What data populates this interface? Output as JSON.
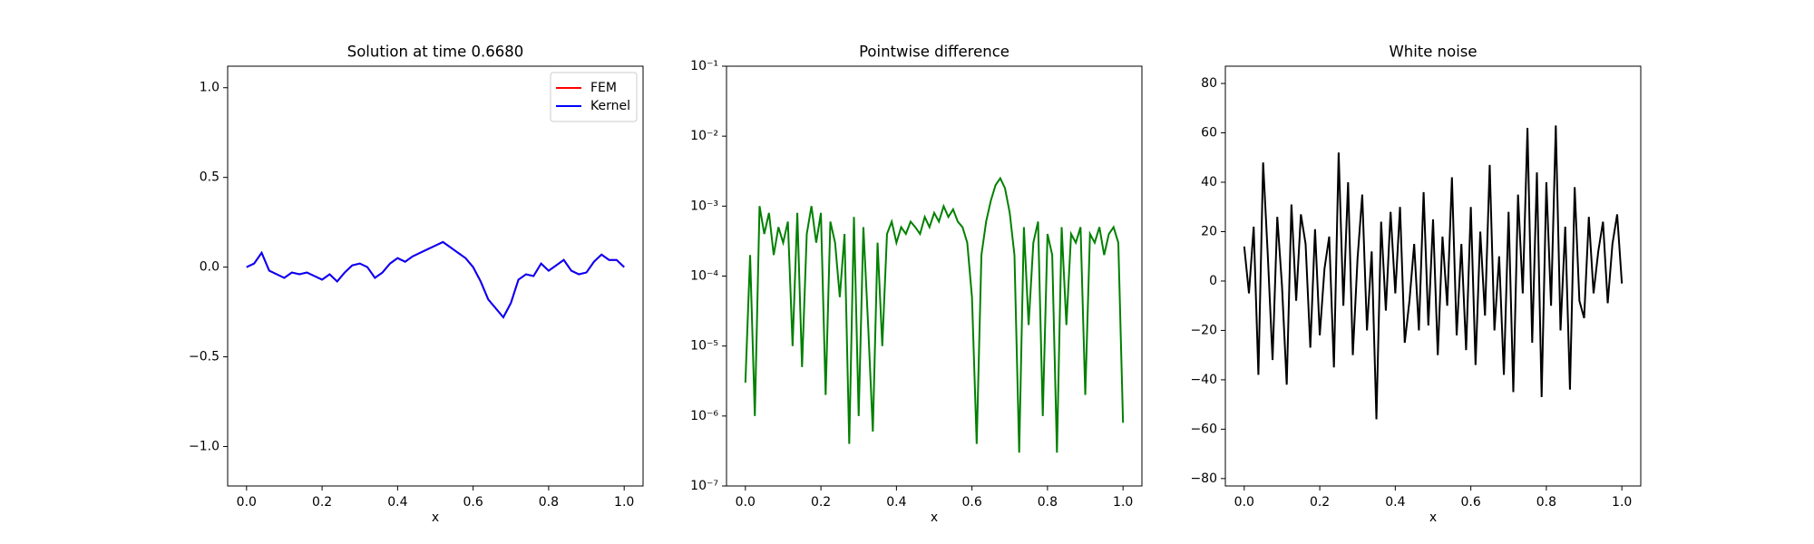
{
  "chart_data": [
    {
      "type": "line",
      "title": "Solution at time 0.6680",
      "xlabel": "x",
      "legend": "upper right",
      "x": [
        0,
        0.02,
        0.04,
        0.06,
        0.08,
        0.1,
        0.12,
        0.14,
        0.16,
        0.18,
        0.2,
        0.22,
        0.24,
        0.26,
        0.28,
        0.3,
        0.32,
        0.34,
        0.36,
        0.38,
        0.4,
        0.42,
        0.44,
        0.46,
        0.48,
        0.5,
        0.52,
        0.54,
        0.56,
        0.58,
        0.6,
        0.62,
        0.64,
        0.66,
        0.68,
        0.7,
        0.72,
        0.74,
        0.76,
        0.78,
        0.8,
        0.82,
        0.84,
        0.86,
        0.88,
        0.9,
        0.92,
        0.94,
        0.96,
        0.98,
        1
      ],
      "series": [
        {
          "name": "FEM",
          "color": "#ff0000",
          "values": [
            0,
            0.02,
            0.08,
            -0.02,
            -0.04,
            -0.06,
            -0.03,
            -0.04,
            -0.03,
            -0.05,
            -0.07,
            -0.04,
            -0.08,
            -0.03,
            0.01,
            0.02,
            0,
            -0.06,
            -0.03,
            0.02,
            0.05,
            0.03,
            0.06,
            0.08,
            0.1,
            0.12,
            0.14,
            0.11,
            0.08,
            0.05,
            0,
            -0.08,
            -0.18,
            -0.23,
            -0.28,
            -0.2,
            -0.07,
            -0.04,
            -0.05,
            0.02,
            -0.02,
            0.01,
            0.04,
            -0.02,
            -0.04,
            -0.03,
            0.03,
            0.07,
            0.04,
            0.04,
            0
          ]
        },
        {
          "name": "Kernel",
          "color": "#0000ff",
          "values": [
            0,
            0.02,
            0.08,
            -0.02,
            -0.04,
            -0.06,
            -0.03,
            -0.04,
            -0.03,
            -0.05,
            -0.07,
            -0.04,
            -0.08,
            -0.03,
            0.01,
            0.02,
            0,
            -0.06,
            -0.03,
            0.02,
            0.05,
            0.03,
            0.06,
            0.08,
            0.1,
            0.12,
            0.14,
            0.11,
            0.08,
            0.05,
            0,
            -0.08,
            -0.18,
            -0.23,
            -0.28,
            -0.2,
            -0.07,
            -0.04,
            -0.05,
            0.02,
            -0.02,
            0.01,
            0.04,
            -0.02,
            -0.04,
            -0.03,
            0.03,
            0.07,
            0.04,
            0.04,
            0
          ]
        }
      ],
      "xlim": [
        -0.05,
        1.05
      ],
      "ylim": [
        -1.22,
        1.12
      ],
      "xticks": [
        {
          "value": 0,
          "label": "0.0"
        },
        {
          "value": 0.2,
          "label": "0.2"
        },
        {
          "value": 0.4,
          "label": "0.4"
        },
        {
          "value": 0.6,
          "label": "0.6"
        },
        {
          "value": 0.8,
          "label": "0.8"
        },
        {
          "value": 1,
          "label": "1.0"
        }
      ],
      "yticks": [
        {
          "value": -1,
          "label": "−1.0"
        },
        {
          "value": -0.5,
          "label": "−0.5"
        },
        {
          "value": 0,
          "label": "0.0"
        },
        {
          "value": 0.5,
          "label": "0.5"
        },
        {
          "value": 1,
          "label": "1.0"
        }
      ]
    },
    {
      "type": "line",
      "title": "Pointwise difference",
      "xlabel": "x",
      "log": true,
      "x": [
        0,
        0.0125,
        0.025,
        0.0375,
        0.05,
        0.0625,
        0.075,
        0.0875,
        0.1,
        0.1125,
        0.125,
        0.1375,
        0.15,
        0.1625,
        0.175,
        0.1875,
        0.2,
        0.2125,
        0.225,
        0.2375,
        0.25,
        0.2625,
        0.275,
        0.2875,
        0.3,
        0.3125,
        0.325,
        0.3375,
        0.35,
        0.3625,
        0.375,
        0.3875,
        0.4,
        0.4125,
        0.425,
        0.4375,
        0.45,
        0.4625,
        0.475,
        0.4875,
        0.5,
        0.5125,
        0.525,
        0.5375,
        0.55,
        0.5625,
        0.575,
        0.5875,
        0.6,
        0.6125,
        0.625,
        0.6375,
        0.65,
        0.6625,
        0.675,
        0.6875,
        0.7,
        0.7125,
        0.725,
        0.7375,
        0.75,
        0.7625,
        0.775,
        0.7875,
        0.8,
        0.8125,
        0.825,
        0.8375,
        0.85,
        0.8625,
        0.875,
        0.8875,
        0.9,
        0.9125,
        0.925,
        0.9375,
        0.95,
        0.9625,
        0.975,
        0.9875,
        1
      ],
      "series": [
        {
          "color": "#008000",
          "values": [
            3e-06,
            0.0002,
            1e-06,
            0.001,
            0.0004,
            0.0008,
            0.0002,
            0.0005,
            0.0003,
            0.0006,
            1e-05,
            0.0008,
            5e-06,
            0.0004,
            0.001,
            0.0003,
            0.0008,
            2e-06,
            0.0006,
            0.0003,
            5e-05,
            0.0004,
            4e-07,
            0.0007,
            1e-06,
            0.0005,
            2e-05,
            6e-07,
            0.0003,
            1e-05,
            0.0004,
            0.0006,
            0.0003,
            0.0005,
            0.0004,
            0.0006,
            0.0005,
            0.0004,
            0.0007,
            0.0005,
            0.0008,
            0.0006,
            0.001,
            0.0007,
            0.0009,
            0.0006,
            0.0005,
            0.0003,
            5e-05,
            4e-07,
            0.0002,
            0.0006,
            0.0012,
            0.002,
            0.0025,
            0.0018,
            0.0008,
            0.0002,
            3e-07,
            0.0005,
            2e-05,
            0.0003,
            0.0006,
            1e-06,
            0.0004,
            0.0002,
            3e-07,
            0.0005,
            2e-05,
            0.0004,
            0.0003,
            0.0005,
            2e-06,
            0.0004,
            0.0003,
            0.0005,
            0.0002,
            0.0004,
            0.0005,
            0.0003,
            8e-07
          ]
        }
      ],
      "xlim": [
        -0.05,
        1.05
      ],
      "ylim": [
        1e-07,
        0.1
      ],
      "xticks": [
        {
          "value": 0,
          "label": "0.0"
        },
        {
          "value": 0.2,
          "label": "0.2"
        },
        {
          "value": 0.4,
          "label": "0.4"
        },
        {
          "value": 0.6,
          "label": "0.6"
        },
        {
          "value": 0.8,
          "label": "0.8"
        },
        {
          "value": 1,
          "label": "1.0"
        }
      ],
      "yticks": [
        {
          "value": 1e-07,
          "label": "10⁻⁷"
        },
        {
          "value": 1e-06,
          "label": "10⁻⁶"
        },
        {
          "value": 1e-05,
          "label": "10⁻⁵"
        },
        {
          "value": 0.0001,
          "label": "10⁻⁴"
        },
        {
          "value": 0.001,
          "label": "10⁻³"
        },
        {
          "value": 0.01,
          "label": "10⁻²"
        },
        {
          "value": 0.1,
          "label": "10⁻¹"
        }
      ]
    },
    {
      "type": "line",
      "title": "White noise",
      "xlabel": "x",
      "x": [
        0,
        0.0125,
        0.025,
        0.0375,
        0.05,
        0.0625,
        0.075,
        0.0875,
        0.1,
        0.1125,
        0.125,
        0.1375,
        0.15,
        0.1625,
        0.175,
        0.1875,
        0.2,
        0.2125,
        0.225,
        0.2375,
        0.25,
        0.2625,
        0.275,
        0.2875,
        0.3,
        0.3125,
        0.325,
        0.3375,
        0.35,
        0.3625,
        0.375,
        0.3875,
        0.4,
        0.4125,
        0.425,
        0.4375,
        0.45,
        0.4625,
        0.475,
        0.4875,
        0.5,
        0.5125,
        0.525,
        0.5375,
        0.55,
        0.5625,
        0.575,
        0.5875,
        0.6,
        0.6125,
        0.625,
        0.6375,
        0.65,
        0.6625,
        0.675,
        0.6875,
        0.7,
        0.7125,
        0.725,
        0.7375,
        0.75,
        0.7625,
        0.775,
        0.7875,
        0.8,
        0.8125,
        0.825,
        0.8375,
        0.85,
        0.8625,
        0.875,
        0.8875,
        0.9,
        0.9125,
        0.925,
        0.9375,
        0.95,
        0.9625,
        0.975,
        0.9875,
        1
      ],
      "series": [
        {
          "color": "#000000",
          "values": [
            14,
            -5,
            22,
            -38,
            48,
            10,
            -32,
            26,
            -2,
            -42,
            31,
            -8,
            27,
            15,
            -27,
            21,
            -22,
            5,
            18,
            -35,
            52,
            -10,
            40,
            -30,
            9,
            35,
            -20,
            12,
            -56,
            24,
            -12,
            28,
            -5,
            30,
            -25,
            -8,
            15,
            -20,
            36,
            -18,
            25,
            -30,
            18,
            -10,
            42,
            -22,
            15,
            -28,
            30,
            -34,
            20,
            -14,
            47,
            -20,
            10,
            -38,
            28,
            -45,
            35,
            -5,
            62,
            -25,
            44,
            -47,
            40,
            -10,
            63,
            -20,
            22,
            -44,
            38,
            -8,
            -15,
            26,
            -5,
            12,
            24,
            -9,
            15,
            27,
            -1
          ]
        }
      ],
      "xlim": [
        -0.05,
        1.05
      ],
      "ylim": [
        -83,
        87
      ],
      "xticks": [
        {
          "value": 0,
          "label": "0.0"
        },
        {
          "value": 0.2,
          "label": "0.2"
        },
        {
          "value": 0.4,
          "label": "0.4"
        },
        {
          "value": 0.6,
          "label": "0.6"
        },
        {
          "value": 0.8,
          "label": "0.8"
        },
        {
          "value": 1,
          "label": "1.0"
        }
      ],
      "yticks": [
        {
          "value": -80,
          "label": "−80"
        },
        {
          "value": -60,
          "label": "−60"
        },
        {
          "value": -40,
          "label": "−40"
        },
        {
          "value": -20,
          "label": "−20"
        },
        0,
        20,
        40,
        60,
        80
      ]
    }
  ]
}
